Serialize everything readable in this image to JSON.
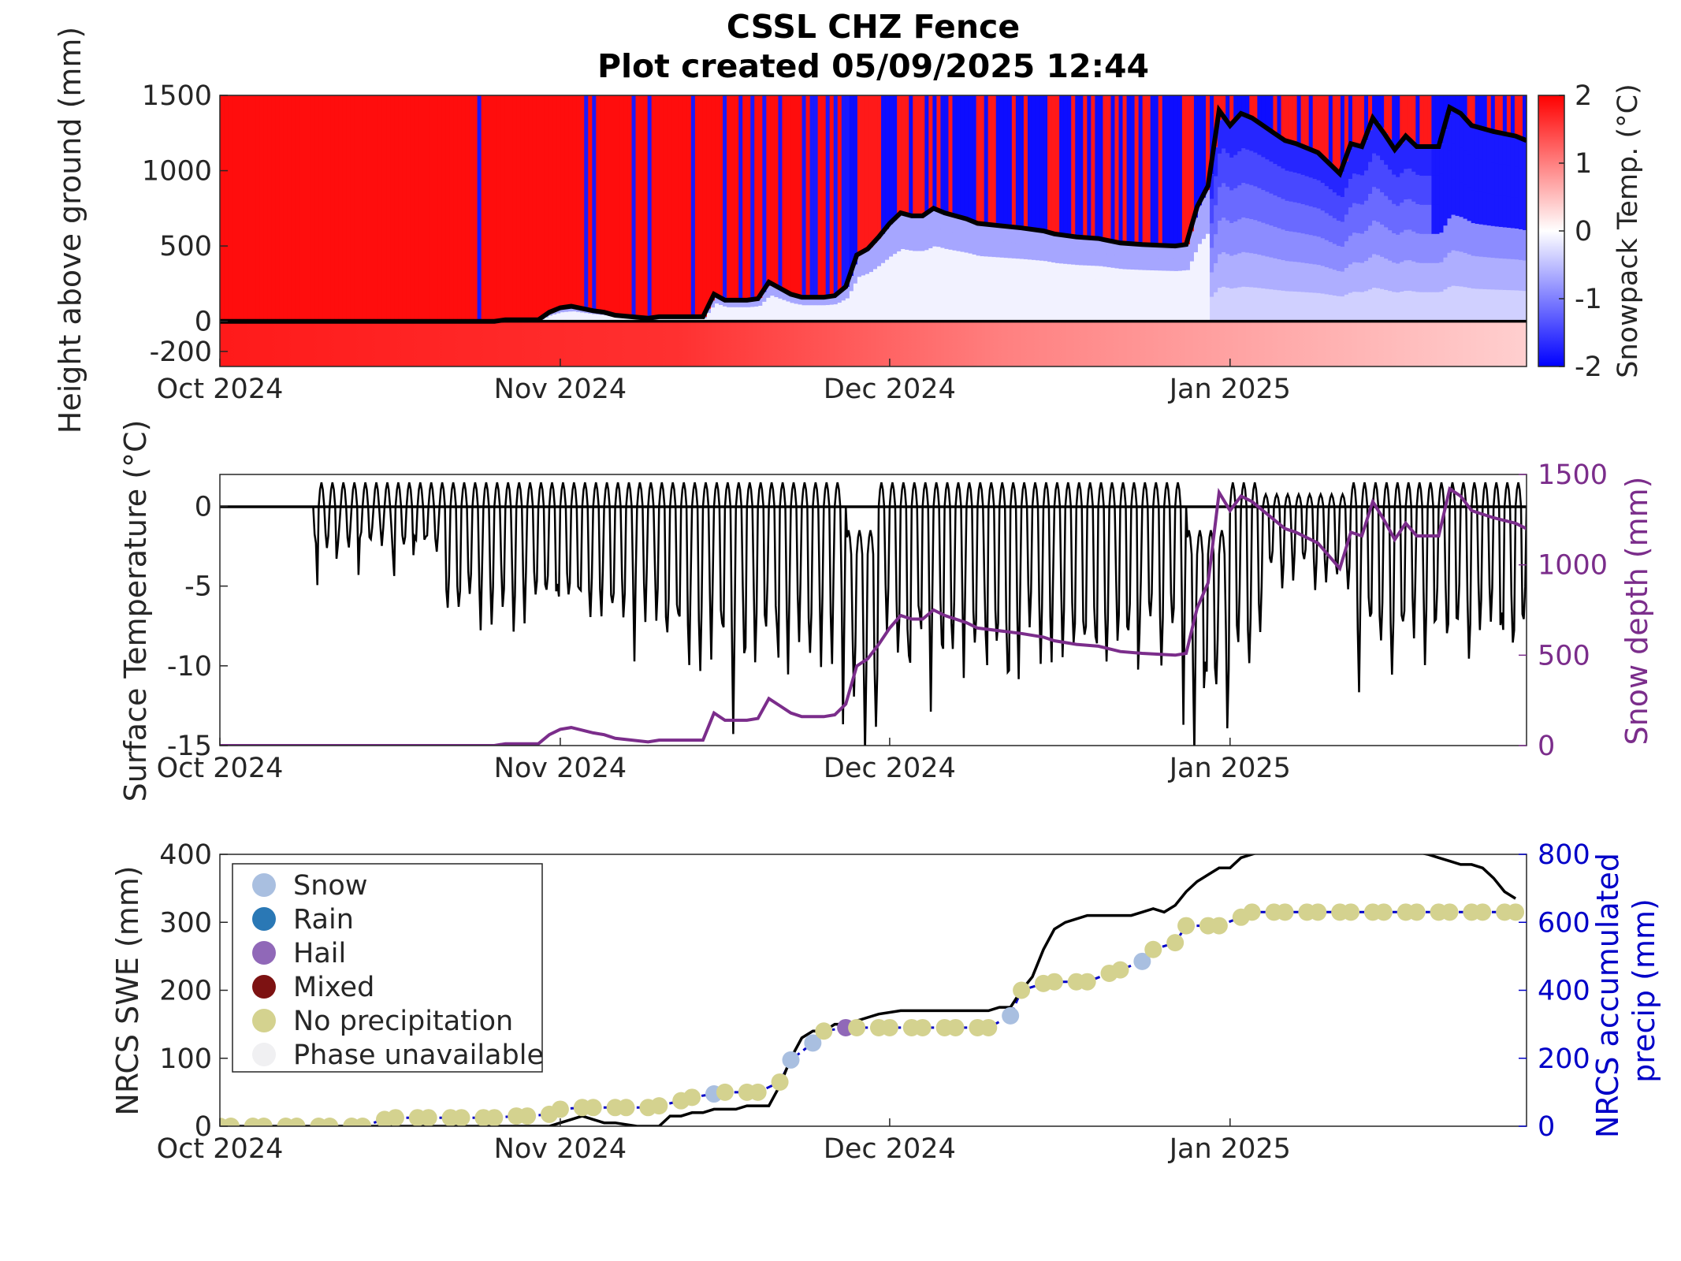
{
  "title": "CSSL CHZ Fence",
  "subtitle": "Plot created 05/09/2025 12:44",
  "colors": {
    "hot": "#ff0000",
    "cold": "#0000ff",
    "snowdepth_line": "#7b2d8b",
    "precip_axis": "#0000c8",
    "dot": "#d4d28f",
    "snow_dot": "#a9bfe0",
    "rain_dot": "#2a78b5",
    "hail_dot": "#9068b8",
    "mixed_dot": "#7d1212",
    "unavail_dot": "#f0f0f2"
  },
  "chart_data": [
    {
      "id": "snowpack",
      "type": "heatmap",
      "ylabel": "Height above ground (mm)",
      "yticks": [
        1500,
        1000,
        500,
        0,
        -200
      ],
      "ylim": [
        -300,
        1500
      ],
      "xticks": [
        "Oct 2024",
        "Nov 2024",
        "Dec 2024",
        "Jan 2025"
      ],
      "xrange_days": [
        0,
        119
      ],
      "tick_days": [
        0,
        31,
        61,
        92
      ],
      "colorbar": {
        "label": "Snowpack Temp. (°C)",
        "ticks": [
          2,
          1,
          0,
          -1,
          -2
        ],
        "range": [
          -2,
          2
        ]
      },
      "snow_depth_mm": [
        [
          0,
          0
        ],
        [
          25,
          0
        ],
        [
          26,
          10
        ],
        [
          29,
          10
        ],
        [
          30,
          60
        ],
        [
          31,
          90
        ],
        [
          32,
          100
        ],
        [
          34,
          70
        ],
        [
          35,
          60
        ],
        [
          36,
          40
        ],
        [
          39,
          20
        ],
        [
          40,
          30
        ],
        [
          44,
          30
        ],
        [
          45,
          180
        ],
        [
          46,
          140
        ],
        [
          48,
          140
        ],
        [
          49,
          150
        ],
        [
          50,
          260
        ],
        [
          51,
          220
        ],
        [
          52,
          180
        ],
        [
          53,
          160
        ],
        [
          55,
          160
        ],
        [
          56,
          170
        ],
        [
          57,
          230
        ],
        [
          58,
          440
        ],
        [
          59,
          480
        ],
        [
          60,
          560
        ],
        [
          61,
          650
        ],
        [
          62,
          720
        ],
        [
          63,
          700
        ],
        [
          64,
          700
        ],
        [
          65,
          750
        ],
        [
          66,
          720
        ],
        [
          68,
          680
        ],
        [
          69,
          650
        ],
        [
          73,
          620
        ],
        [
          75,
          600
        ],
        [
          76,
          580
        ],
        [
          78,
          560
        ],
        [
          80,
          550
        ],
        [
          82,
          520
        ],
        [
          84,
          510
        ],
        [
          87,
          500
        ],
        [
          88,
          510
        ],
        [
          89,
          760
        ],
        [
          90,
          900
        ],
        [
          91,
          1400
        ],
        [
          92,
          1300
        ],
        [
          93,
          1380
        ],
        [
          94,
          1350
        ],
        [
          95,
          1300
        ],
        [
          96,
          1250
        ],
        [
          97,
          1200
        ],
        [
          98,
          1180
        ],
        [
          100,
          1120
        ],
        [
          102,
          980
        ],
        [
          103,
          1180
        ],
        [
          104,
          1160
        ],
        [
          105,
          1350
        ],
        [
          106,
          1250
        ],
        [
          107,
          1140
        ],
        [
          108,
          1230
        ],
        [
          109,
          1160
        ],
        [
          111,
          1160
        ],
        [
          112,
          1420
        ],
        [
          113,
          1380
        ],
        [
          114,
          1300
        ],
        [
          116,
          1260
        ],
        [
          118,
          1230
        ],
        [
          119,
          1200
        ]
      ]
    },
    {
      "id": "surface",
      "type": "line",
      "ylabel": "Surface Temperature (°C)",
      "y2label": "Snow depth (mm)",
      "yticks": [
        0,
        -5,
        -10,
        -15
      ],
      "ylim": [
        -15,
        2
      ],
      "y2ticks": [
        1500,
        1000,
        500,
        0
      ],
      "y2lim": [
        0,
        1500
      ],
      "xticks": [
        "Oct 2024",
        "Nov 2024",
        "Dec 2024",
        "Jan 2025"
      ],
      "tick_days": [
        0,
        31,
        61,
        92
      ],
      "series": [
        {
          "values_desc": "sub-daily surface temperature oscillating between 0 and -15 °C, starting mid-October"
        },
        {
          "values_desc": "snow depth matches top panel"
        }
      ]
    },
    {
      "id": "swe",
      "type": "scatter",
      "ylabel": "NRCS SWE (mm)",
      "y2label": "NRCS accumulated precip (mm)",
      "yticks": [
        400,
        300,
        200,
        100,
        0
      ],
      "ylim": [
        0,
        400
      ],
      "y2ticks": [
        800,
        600,
        400,
        200,
        0
      ],
      "y2lim": [
        0,
        800
      ],
      "xticks": [
        "Oct 2024",
        "Nov 2024",
        "Dec 2024",
        "Jan 2025"
      ],
      "tick_days": [
        0,
        31,
        61,
        92
      ],
      "legend": [
        "Snow",
        "Rain",
        "Hail",
        "Mixed",
        "No precipitation",
        "Phase unavailable"
      ],
      "legend_loc": "top-left",
      "swe_mm": [
        [
          0,
          0
        ],
        [
          14,
          0
        ],
        [
          15,
          0
        ],
        [
          30,
          0
        ],
        [
          31,
          5
        ],
        [
          32,
          10
        ],
        [
          33,
          15
        ],
        [
          34,
          10
        ],
        [
          35,
          5
        ],
        [
          36,
          5
        ],
        [
          38,
          0
        ],
        [
          40,
          0
        ],
        [
          41,
          15
        ],
        [
          42,
          15
        ],
        [
          43,
          20
        ],
        [
          44,
          20
        ],
        [
          45,
          25
        ],
        [
          46,
          25
        ],
        [
          47,
          25
        ],
        [
          48,
          30
        ],
        [
          49,
          30
        ],
        [
          50,
          30
        ],
        [
          51,
          60
        ],
        [
          52,
          100
        ],
        [
          53,
          130
        ],
        [
          54,
          140
        ],
        [
          55,
          140
        ],
        [
          56,
          150
        ],
        [
          57,
          150
        ],
        [
          58,
          155
        ],
        [
          59,
          160
        ],
        [
          60,
          165
        ],
        [
          62,
          170
        ],
        [
          70,
          170
        ],
        [
          71,
          175
        ],
        [
          72,
          175
        ],
        [
          73,
          200
        ],
        [
          74,
          220
        ],
        [
          75,
          260
        ],
        [
          76,
          290
        ],
        [
          77,
          300
        ],
        [
          78,
          305
        ],
        [
          79,
          310
        ],
        [
          80,
          310
        ],
        [
          83,
          310
        ],
        [
          84,
          315
        ],
        [
          85,
          320
        ],
        [
          86,
          315
        ],
        [
          87,
          325
        ],
        [
          88,
          345
        ],
        [
          89,
          360
        ],
        [
          90,
          370
        ],
        [
          91,
          380
        ],
        [
          92,
          380
        ],
        [
          93,
          395
        ],
        [
          94,
          400
        ],
        [
          95,
          405
        ],
        [
          100,
          410
        ],
        [
          107,
          410
        ],
        [
          110,
          400
        ],
        [
          111,
          395
        ],
        [
          112,
          390
        ],
        [
          113,
          385
        ],
        [
          114,
          385
        ],
        [
          115,
          380
        ],
        [
          116,
          365
        ],
        [
          117,
          345
        ],
        [
          118,
          335
        ]
      ],
      "precip_points": [
        [
          0,
          0,
          "none"
        ],
        [
          1,
          0,
          "none"
        ],
        [
          3,
          0,
          "none"
        ],
        [
          4,
          0,
          "none"
        ],
        [
          6,
          0,
          "none"
        ],
        [
          7,
          0,
          "none"
        ],
        [
          9,
          0,
          "none"
        ],
        [
          10,
          0,
          "none"
        ],
        [
          12,
          0,
          "none"
        ],
        [
          13,
          0,
          "none"
        ],
        [
          15,
          20,
          "none"
        ],
        [
          16,
          25,
          "none"
        ],
        [
          18,
          25,
          "none"
        ],
        [
          19,
          25,
          "none"
        ],
        [
          21,
          25,
          "none"
        ],
        [
          22,
          25,
          "none"
        ],
        [
          24,
          25,
          "none"
        ],
        [
          25,
          25,
          "none"
        ],
        [
          27,
          30,
          "none"
        ],
        [
          28,
          30,
          "none"
        ],
        [
          30,
          35,
          "none"
        ],
        [
          31,
          50,
          "none"
        ],
        [
          33,
          55,
          "none"
        ],
        [
          34,
          55,
          "none"
        ],
        [
          36,
          55,
          "none"
        ],
        [
          37,
          55,
          "none"
        ],
        [
          39,
          55,
          "none"
        ],
        [
          40,
          60,
          "none"
        ],
        [
          42,
          75,
          "none"
        ],
        [
          43,
          85,
          "none"
        ],
        [
          45,
          95,
          "snow"
        ],
        [
          46,
          100,
          "none"
        ],
        [
          48,
          100,
          "none"
        ],
        [
          49,
          100,
          "none"
        ],
        [
          51,
          130,
          "none"
        ],
        [
          52,
          195,
          "snow"
        ],
        [
          54,
          245,
          "snow"
        ],
        [
          55,
          280,
          "none"
        ],
        [
          57,
          290,
          "hail"
        ],
        [
          58,
          290,
          "none"
        ],
        [
          60,
          290,
          "none"
        ],
        [
          61,
          290,
          "none"
        ],
        [
          63,
          290,
          "none"
        ],
        [
          64,
          290,
          "none"
        ],
        [
          66,
          290,
          "none"
        ],
        [
          67,
          290,
          "none"
        ],
        [
          69,
          290,
          "none"
        ],
        [
          70,
          290,
          "none"
        ],
        [
          72,
          325,
          "snow"
        ],
        [
          73,
          400,
          "none"
        ],
        [
          75,
          420,
          "none"
        ],
        [
          76,
          425,
          "none"
        ],
        [
          78,
          425,
          "none"
        ],
        [
          79,
          425,
          "none"
        ],
        [
          81,
          450,
          "none"
        ],
        [
          82,
          460,
          "none"
        ],
        [
          84,
          485,
          "snow"
        ],
        [
          85,
          520,
          "none"
        ],
        [
          87,
          540,
          "none"
        ],
        [
          88,
          590,
          "none"
        ],
        [
          90,
          590,
          "none"
        ],
        [
          91,
          590,
          "none"
        ],
        [
          93,
          615,
          "none"
        ],
        [
          94,
          630,
          "none"
        ],
        [
          96,
          630,
          "none"
        ],
        [
          97,
          630,
          "none"
        ],
        [
          99,
          630,
          "none"
        ],
        [
          100,
          630,
          "none"
        ],
        [
          102,
          630,
          "none"
        ],
        [
          103,
          630,
          "none"
        ],
        [
          105,
          630,
          "none"
        ],
        [
          106,
          630,
          "none"
        ],
        [
          108,
          630,
          "none"
        ],
        [
          109,
          630,
          "none"
        ],
        [
          111,
          630,
          "none"
        ],
        [
          112,
          630,
          "none"
        ],
        [
          114,
          630,
          "none"
        ],
        [
          115,
          630,
          "none"
        ],
        [
          117,
          630,
          "none"
        ],
        [
          118,
          630,
          "none"
        ]
      ]
    }
  ]
}
